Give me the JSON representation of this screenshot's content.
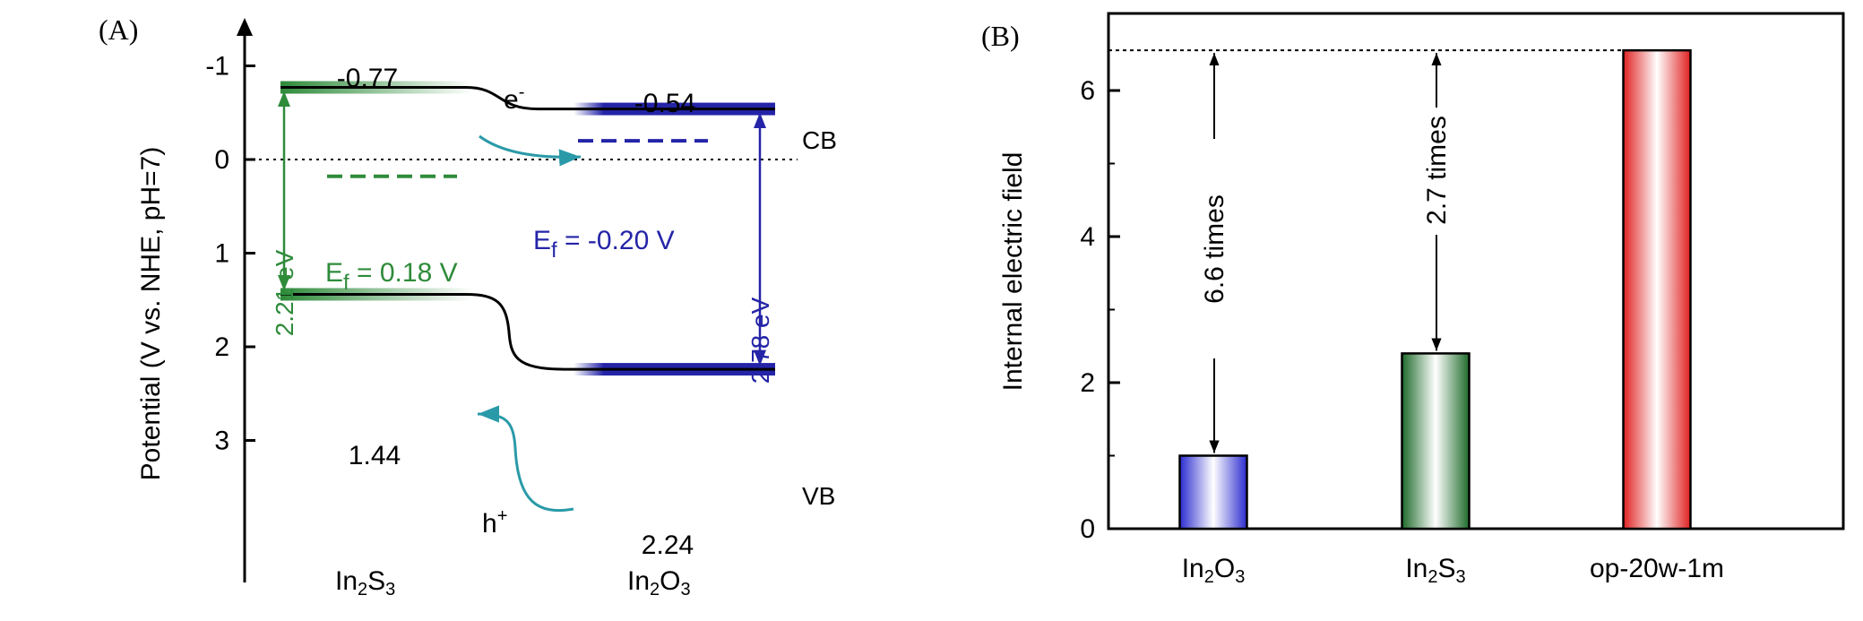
{
  "panel_a": {
    "label": "(A)",
    "ylabel": "Potential (V vs. NHE, pH=7)",
    "yticks": [
      "-1",
      "0",
      "1",
      "2",
      "3"
    ],
    "cb": "CB",
    "vb": "VB",
    "electron": "e",
    "electron_sup": "-",
    "hole": "h",
    "hole_sup": "+",
    "in2s3": {
      "name_main": "In",
      "name_sub1": "2",
      "name_mid": "S",
      "name_sub2": "3",
      "cb_value": "-0.77",
      "vb_value": "1.44",
      "gap": "2.21 eV",
      "ef_E": "E",
      "ef_f": "f",
      "ef_rest": " = 0.18 V",
      "cb": -0.77,
      "vb": 1.44,
      "ef": 0.18
    },
    "in2o3": {
      "name_main": "In",
      "name_sub1": "2",
      "name_mid": "O",
      "name_sub2": "3",
      "cb_value": "-0.54",
      "vb_value": "2.24",
      "gap": "2.78 eV",
      "ef_E": "E",
      "ef_f": "f",
      "ef_rest": " = -0.20 V",
      "cb": -0.54,
      "vb": 2.24,
      "ef": -0.2
    },
    "colors": {
      "green": "#2e8b3a",
      "blue": "#2424a8",
      "teal": "#2a9aa8"
    }
  },
  "panel_b": {
    "label": "(B)",
    "ylabel": "Internal electric field",
    "yticks": [
      "0",
      "2",
      "4",
      "6"
    ],
    "ann1": "6.6 times",
    "ann2": "2.7 times",
    "cat1": {
      "main": "In",
      "sub1": "2",
      "mid": "O",
      "sub2": "3"
    },
    "cat2": {
      "main": "In",
      "sub1": "2",
      "mid": "S",
      "sub2": "3"
    },
    "cat3": "op-20w-1m"
  },
  "chart_data": [
    {
      "type": "diagram",
      "title": "",
      "ylabel": "Potential (V vs. NHE, pH=7)",
      "ylim": [
        -1.5,
        3
      ],
      "axis_inverted": true,
      "series": [
        {
          "name": "In2S3",
          "CB": -0.77,
          "VB": 1.44,
          "Ef": 0.18,
          "band_gap_eV": 2.21
        },
        {
          "name": "In2O3",
          "CB": -0.54,
          "VB": 2.24,
          "Ef": -0.2,
          "band_gap_eV": 2.78
        }
      ]
    },
    {
      "type": "bar",
      "categories": [
        "In2O3",
        "In2S3",
        "op-20w-1m"
      ],
      "values": [
        1.0,
        2.4,
        6.55
      ],
      "colors": [
        "#2b2bd0",
        "#1e6b2a",
        "#e02020"
      ],
      "xlabel": "",
      "ylabel": "Internal electric field",
      "ylim": [
        0,
        7.1
      ],
      "annotations": [
        "6.6 times",
        "2.7 times"
      ]
    }
  ]
}
